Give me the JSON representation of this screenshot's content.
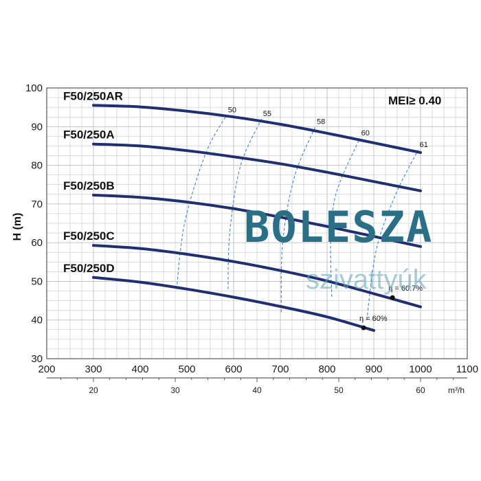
{
  "chart_data": {
    "type": "line",
    "ylabel": "H (m)",
    "x2label": "m³/h",
    "xlim": [
      200,
      1100
    ],
    "ylim": [
      30,
      100
    ],
    "x_ticks": [
      200,
      300,
      400,
      500,
      600,
      700,
      800,
      900,
      1000,
      1100
    ],
    "y_ticks": [
      30,
      40,
      50,
      60,
      70,
      80,
      90,
      100
    ],
    "x2_ticks": [
      20,
      30,
      40,
      50,
      60
    ],
    "grid": true,
    "series": [
      {
        "name": "F50/250AR",
        "x": [
          300,
          400,
          500,
          600,
          700,
          800,
          900,
          1000
        ],
        "y": [
          95.5,
          95.1,
          94.0,
          92.5,
          90.6,
          88.3,
          85.8,
          83.3
        ]
      },
      {
        "name": "F50/250A",
        "x": [
          300,
          400,
          500,
          600,
          700,
          800,
          900,
          1000
        ],
        "y": [
          85.5,
          85.0,
          83.8,
          82.2,
          80.4,
          78.2,
          75.8,
          73.4
        ]
      },
      {
        "name": "F50/250B",
        "x": [
          300,
          400,
          500,
          600,
          700,
          800,
          900,
          1000
        ],
        "y": [
          72.3,
          71.7,
          70.5,
          68.8,
          66.6,
          64.2,
          61.6,
          59.0
        ]
      },
      {
        "name": "F50/250C",
        "x": [
          300,
          400,
          500,
          600,
          700,
          800,
          900,
          1000
        ],
        "y": [
          59.3,
          58.5,
          57.0,
          55.1,
          52.8,
          50.1,
          46.8,
          43.4
        ]
      },
      {
        "name": "F50/250D",
        "x": [
          300,
          400,
          500,
          600,
          700,
          800,
          900
        ],
        "y": [
          51.0,
          49.8,
          48.0,
          45.9,
          43.5,
          40.8,
          37.3
        ]
      }
    ],
    "efficiency_curves": [
      {
        "label": "50",
        "x": [
          478,
          495,
          540,
          585
        ],
        "y": [
          48,
          65,
          83,
          93
        ]
      },
      {
        "label": "55",
        "x": [
          588,
          592,
          615,
          660
        ],
        "y": [
          48,
          63,
          80,
          92
        ]
      },
      {
        "label": "58",
        "x": [
          702,
          705,
          730,
          775
        ],
        "y": [
          42,
          60,
          77,
          90
        ]
      },
      {
        "label": "60",
        "x": [
          810,
          808,
          820,
          870
        ],
        "y": [
          46,
          61,
          73,
          87
        ]
      },
      {
        "label": "61",
        "x": [
          885,
          905,
          945,
          995
        ],
        "y": [
          40,
          58,
          72,
          84
        ]
      }
    ],
    "efficiency_marks": [
      {
        "label": "η = 60.7%",
        "x": [
          940
        ],
        "y": [
          45.8
        ]
      },
      {
        "label": "η = 60%",
        "x": [
          878
        ],
        "y": [
          38
        ]
      }
    ],
    "annotations": [
      "MEI≥ 0.40"
    ]
  },
  "watermark": {
    "title": "BOLESZA",
    "subtitle": "szivattyúk"
  },
  "colors": {
    "curve": "#1f2f70",
    "efficiency": "#4a8cd8",
    "grid": "#bdbdbd",
    "brand": "#2a6f86"
  }
}
